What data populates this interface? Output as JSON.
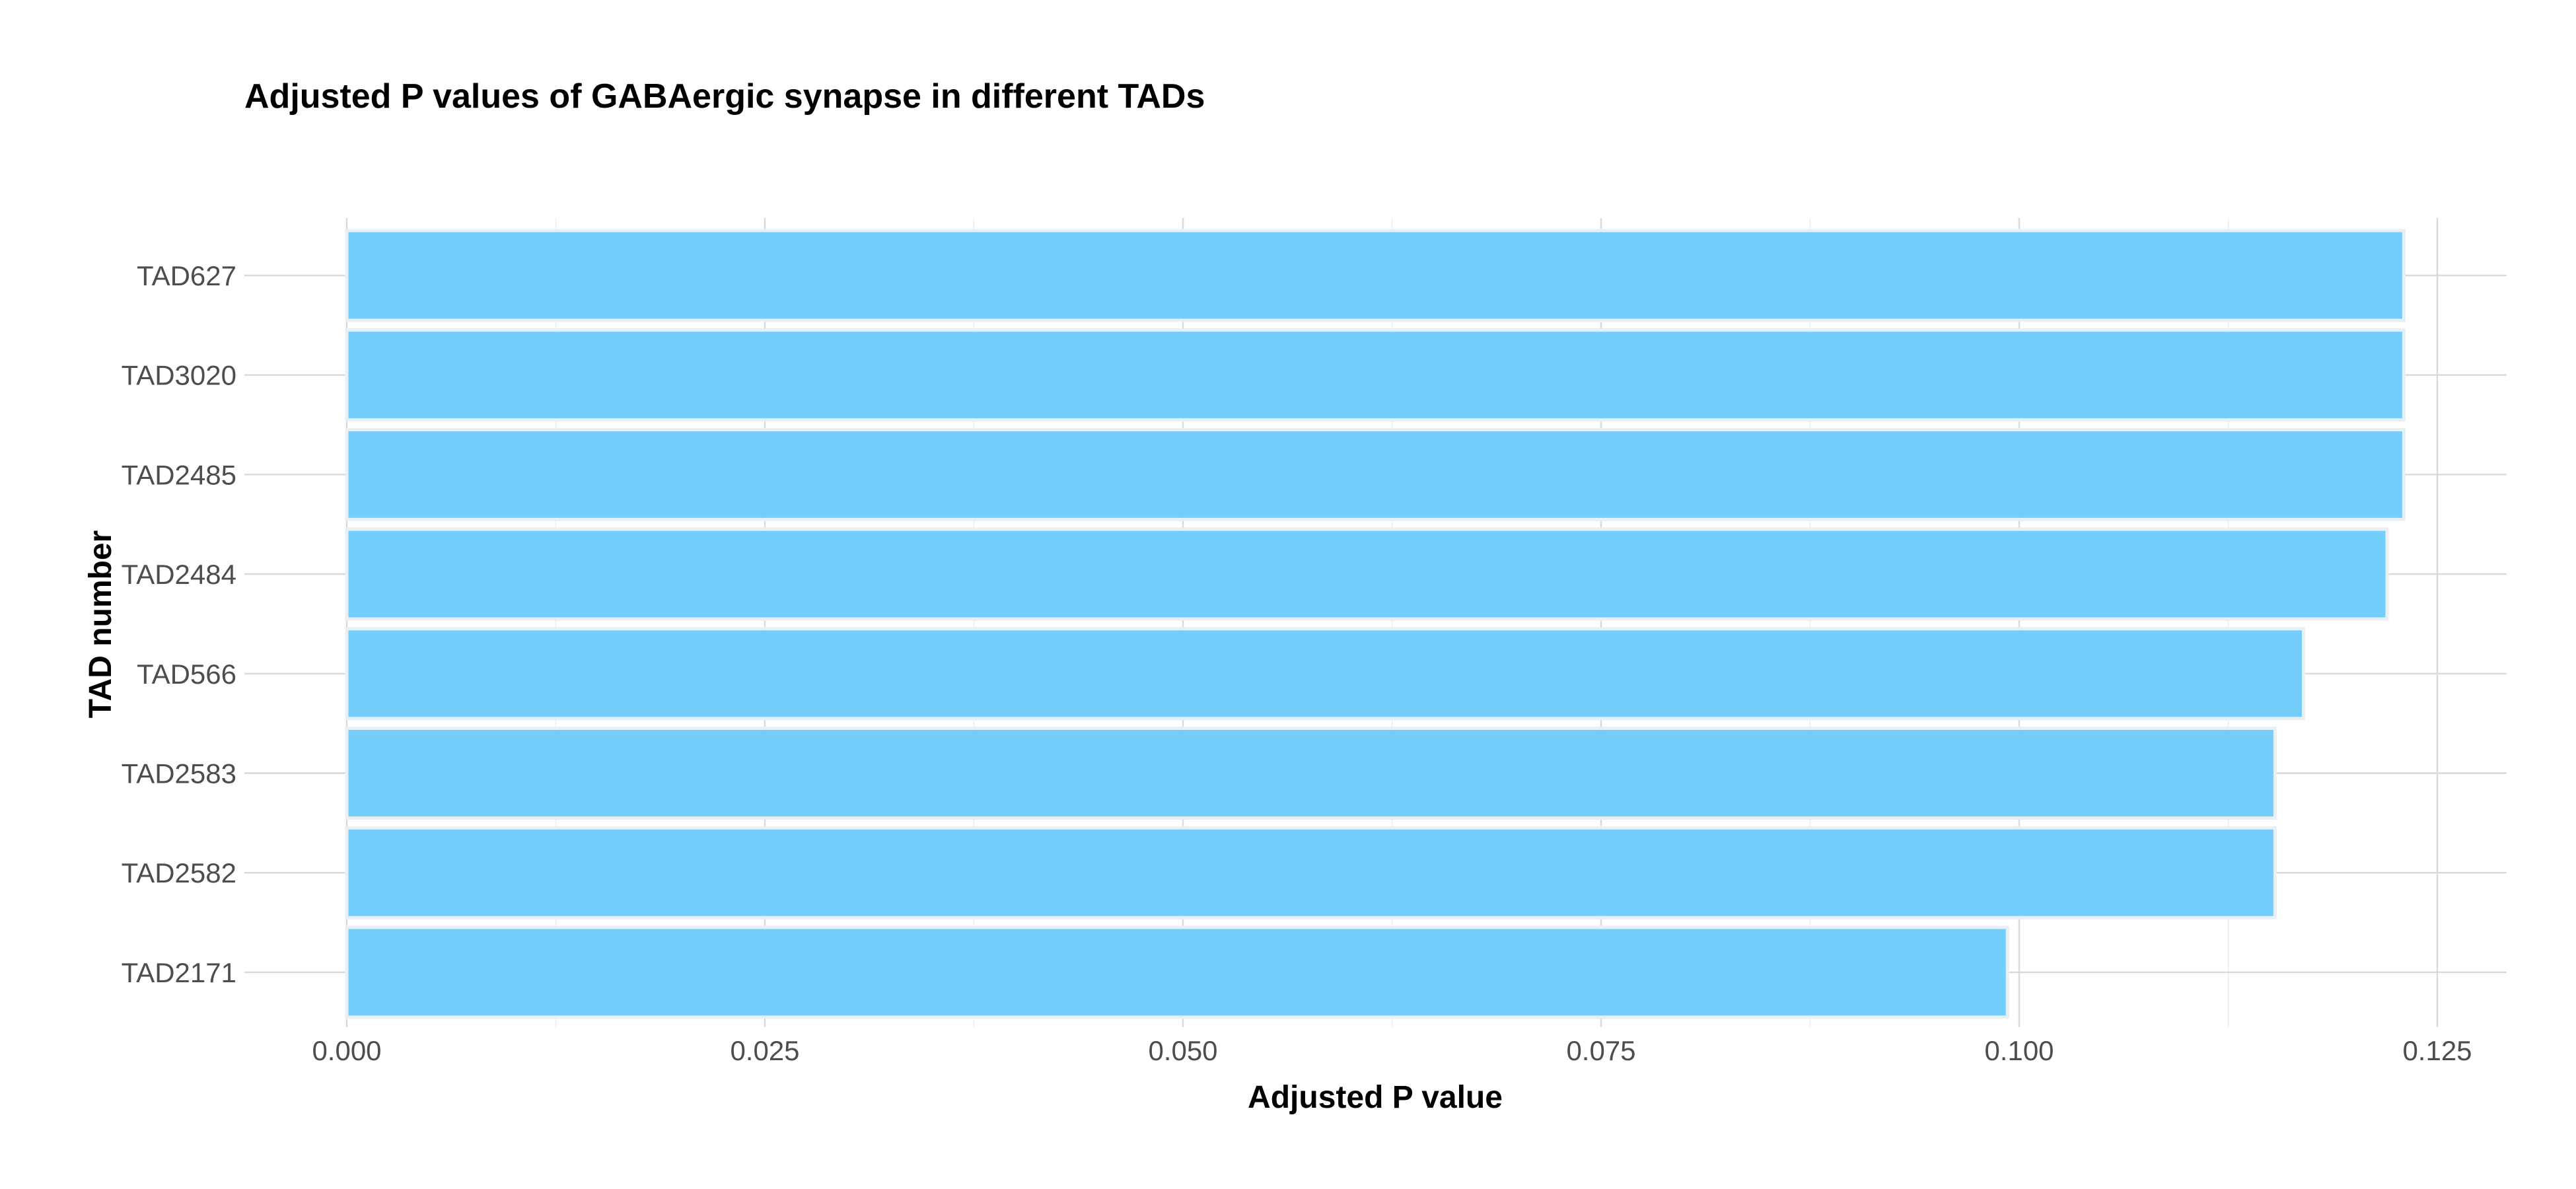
{
  "chart_data": {
    "type": "bar",
    "orientation": "horizontal",
    "title": "Adjusted P values of GABAergic synapse in different TADs",
    "xlabel": "Adjusted P value",
    "ylabel": "TAD number",
    "categories": [
      "TAD627",
      "TAD3020",
      "TAD2485",
      "TAD2484",
      "TAD566",
      "TAD2583",
      "TAD2582",
      "TAD2171"
    ],
    "values": [
      0.123,
      0.123,
      0.123,
      0.122,
      0.117,
      0.1153,
      0.1153,
      0.0993
    ],
    "xlim": [
      0,
      0.13
    ],
    "xticks": [
      0,
      0.025,
      0.05,
      0.075,
      0.1,
      0.125
    ],
    "xtick_labels": [
      "0.000",
      "0.025",
      "0.050",
      "0.075",
      "0.100",
      "0.125"
    ],
    "grid": true,
    "legend": "none",
    "bar_color": "#6ccbfb"
  }
}
